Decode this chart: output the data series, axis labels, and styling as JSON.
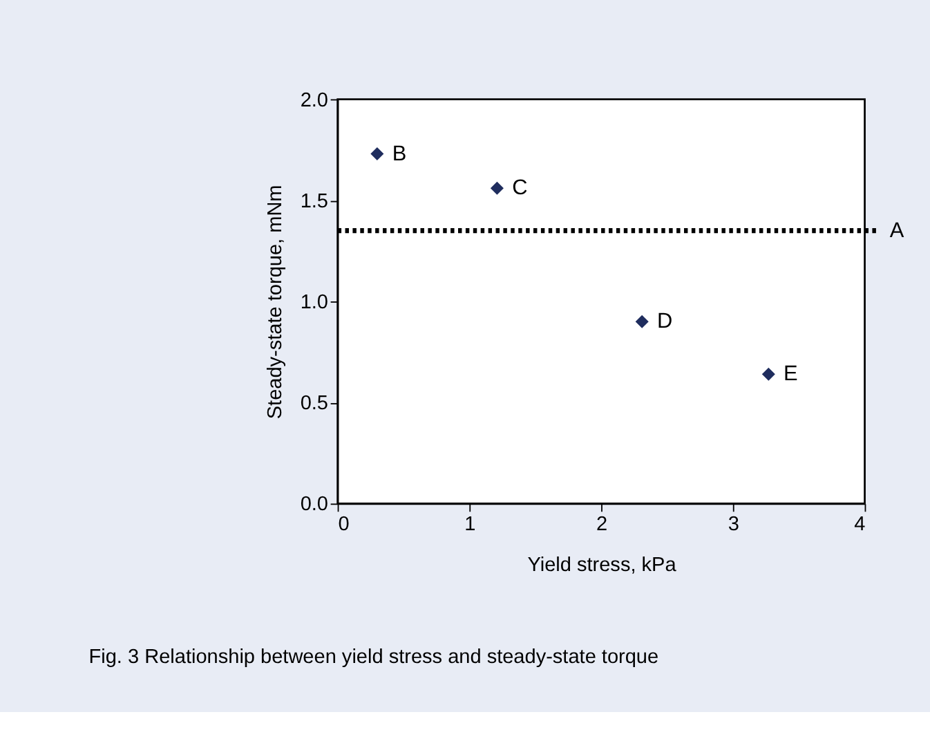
{
  "chart_data": {
    "type": "scatter",
    "xlabel": "Yield stress, kPa",
    "ylabel": "Steady-state torque, mNm",
    "x": [
      0.3,
      1.21,
      2.31,
      3.27
    ],
    "values": [
      1.73,
      1.56,
      0.9,
      0.64
    ],
    "color": "#1f2d5e",
    "marker": "diamond",
    "xlim": [
      0,
      4
    ],
    "xticks": [
      0,
      1,
      2,
      3,
      4
    ],
    "ylim": [
      0,
      2
    ],
    "yticks": [
      {
        "value": 0,
        "label": "0.0"
      },
      {
        "value": 0.5,
        "label": "0.5"
      },
      {
        "value": 1,
        "label": "1.0"
      },
      {
        "value": 1.5,
        "label": "1.5"
      },
      {
        "value": 2,
        "label": "2.0"
      }
    ],
    "ref_lines": [
      {
        "axis": "y",
        "value": 1.35,
        "label": "A",
        "color": "#000000",
        "line_style": "dotted"
      }
    ],
    "annotations": [
      {
        "text": "B",
        "x": 0.3,
        "y": 1.73
      },
      {
        "text": "C",
        "x": 1.21,
        "y": 1.56
      },
      {
        "text": "D",
        "x": 2.31,
        "y": 0.9
      },
      {
        "text": "E",
        "x": 3.27,
        "y": 0.64
      },
      "Fig. 3  Relationship between yield stress and steady-state torque"
    ]
  }
}
